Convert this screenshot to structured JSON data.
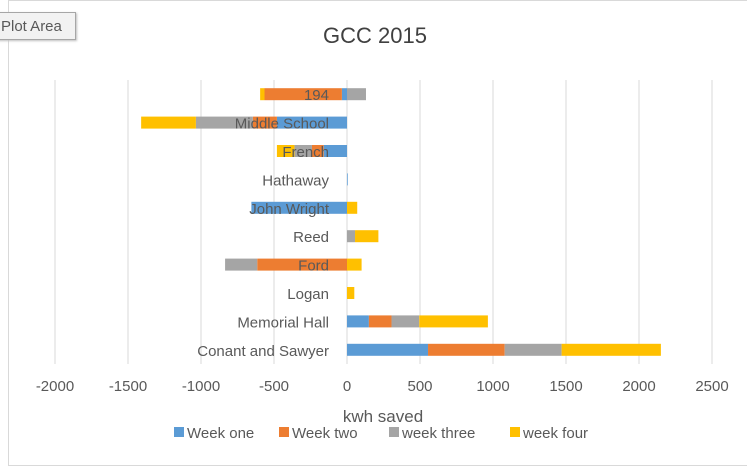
{
  "ui": {
    "plot_area_tag": "Plot Area"
  },
  "colors": {
    "week_one": "#5b9bd5",
    "week_two": "#ed7d31",
    "week_three": "#a5a5a5",
    "week_four": "#ffc000",
    "gridline": "#d9d9d9",
    "text": "#595959",
    "title": "#404040"
  },
  "chart_data": {
    "type": "bar",
    "orientation": "horizontal",
    "stacked": true,
    "title": "GCC 2015",
    "xlabel": "kwh saved",
    "ylabel": "",
    "xlim": [
      -2000,
      2500
    ],
    "xticks": [
      -2000,
      -1500,
      -1000,
      -500,
      0,
      500,
      1000,
      1500,
      2000,
      2500
    ],
    "grid": true,
    "legend_position": "bottom",
    "categories": [
      "Conant and Sawyer",
      "Memorial Hall",
      "Logan",
      "Ford",
      "Reed",
      "John Wright",
      "Hathaway",
      "French",
      "Middle School",
      "194"
    ],
    "series": [
      {
        "name": "Week one",
        "values": [
          555,
          150,
          0,
          0,
          0,
          -655,
          5,
          -160,
          -480,
          -35
        ]
      },
      {
        "name": "Week two",
        "values": [
          525,
          155,
          0,
          -615,
          0,
          0,
          0,
          -80,
          -165,
          -530
        ]
      },
      {
        "name": "week three",
        "values": [
          390,
          190,
          0,
          -220,
          55,
          0,
          0,
          -120,
          -390,
          130
        ]
      },
      {
        "name": "week four",
        "values": [
          680,
          470,
          50,
          100,
          160,
          70,
          0,
          -120,
          -375,
          -30
        ]
      }
    ]
  }
}
